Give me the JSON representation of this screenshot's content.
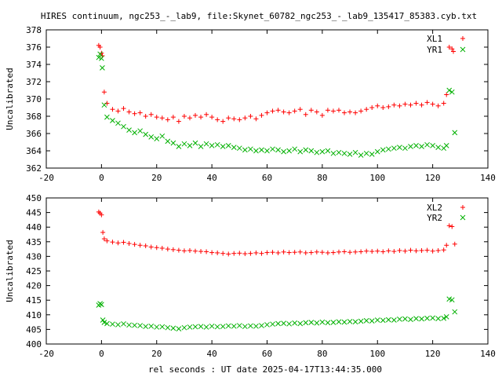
{
  "title": "HIRES continuum, ngc253_-_lab9, file:Skynet_60782_ngc253_-_lab9_135417_85383.cyb.txt",
  "xlabel": "rel seconds : UT date 2025-04-17T13:44:35.000",
  "colors": {
    "red": "#ff0000",
    "green": "#00b000",
    "frame": "#000000"
  },
  "chart_data": [
    {
      "type": "scatter",
      "ylabel": "Uncalibrated",
      "xlim": [
        -20,
        140
      ],
      "ylim": [
        362,
        378
      ],
      "xticks": [
        -20,
        0,
        20,
        40,
        60,
        80,
        100,
        120,
        140
      ],
      "yticks": [
        362,
        364,
        366,
        368,
        370,
        372,
        374,
        376,
        378
      ],
      "legend": "top-right",
      "grid": false,
      "series": [
        {
          "name": "XL1",
          "color": "#ff0000",
          "marker": "+",
          "x": [
            -1,
            -0.5,
            0,
            0.3,
            1,
            2,
            4,
            6,
            8,
            10,
            12,
            14,
            16,
            18,
            20,
            22,
            24,
            26,
            28,
            30,
            32,
            34,
            36,
            38,
            40,
            42,
            44,
            46,
            48,
            50,
            52,
            54,
            56,
            58,
            60,
            62,
            64,
            66,
            68,
            70,
            72,
            74,
            76,
            78,
            80,
            82,
            84,
            86,
            88,
            90,
            92,
            94,
            96,
            98,
            100,
            102,
            104,
            106,
            108,
            110,
            112,
            114,
            116,
            118,
            120,
            122,
            124,
            125,
            126,
            127,
            127.5
          ],
          "y": [
            376.2,
            376.0,
            375.3,
            375.0,
            370.8,
            369.5,
            368.8,
            368.6,
            368.9,
            368.5,
            368.3,
            368.4,
            368.0,
            368.2,
            367.9,
            367.8,
            367.6,
            367.9,
            367.4,
            368.0,
            367.8,
            368.1,
            367.9,
            368.2,
            367.9,
            367.6,
            367.4,
            367.8,
            367.7,
            367.6,
            367.8,
            368.0,
            367.7,
            368.1,
            368.4,
            368.6,
            368.7,
            368.5,
            368.4,
            368.6,
            368.8,
            368.2,
            368.7,
            368.5,
            368.1,
            368.7,
            368.6,
            368.7,
            368.4,
            368.5,
            368.4,
            368.6,
            368.8,
            369.0,
            369.2,
            369.0,
            369.1,
            369.3,
            369.2,
            369.4,
            369.3,
            369.5,
            369.3,
            369.6,
            369.4,
            369.2,
            369.5,
            370.5,
            376.0,
            375.8,
            375.5
          ]
        },
        {
          "name": "YR1",
          "color": "#00b000",
          "marker": "x",
          "x": [
            -1,
            -0.5,
            0,
            0.3,
            1,
            2,
            4,
            6,
            8,
            10,
            12,
            14,
            16,
            18,
            20,
            22,
            24,
            26,
            28,
            30,
            32,
            34,
            36,
            38,
            40,
            42,
            44,
            46,
            48,
            50,
            52,
            54,
            56,
            58,
            60,
            62,
            64,
            66,
            68,
            70,
            72,
            74,
            76,
            78,
            80,
            82,
            84,
            86,
            88,
            90,
            92,
            94,
            96,
            98,
            100,
            102,
            104,
            106,
            108,
            110,
            112,
            114,
            116,
            118,
            120,
            122,
            124,
            125,
            126,
            127,
            128
          ],
          "y": [
            374.8,
            375.2,
            374.7,
            373.6,
            369.3,
            367.9,
            367.5,
            367.2,
            366.8,
            366.4,
            366.1,
            366.3,
            365.9,
            365.6,
            365.4,
            365.7,
            365.1,
            364.9,
            364.5,
            364.8,
            364.6,
            364.9,
            364.5,
            364.8,
            364.6,
            364.7,
            364.5,
            364.6,
            364.4,
            364.3,
            364.1,
            364.2,
            364.0,
            364.1,
            364.0,
            364.2,
            364.1,
            363.9,
            364.0,
            364.2,
            363.9,
            364.1,
            364.0,
            363.8,
            363.9,
            364.0,
            363.7,
            363.8,
            363.7,
            363.6,
            363.8,
            363.5,
            363.7,
            363.6,
            363.9,
            364.1,
            364.2,
            364.3,
            364.4,
            364.3,
            364.5,
            364.6,
            364.5,
            364.7,
            364.6,
            364.4,
            364.3,
            364.6,
            371.0,
            370.8,
            366.1
          ]
        }
      ]
    },
    {
      "type": "scatter",
      "ylabel": "Uncalibrated",
      "xlim": [
        -20,
        140
      ],
      "ylim": [
        400,
        450
      ],
      "xticks": [
        -20,
        0,
        20,
        40,
        60,
        80,
        100,
        120,
        140
      ],
      "yticks": [
        400,
        405,
        410,
        415,
        420,
        425,
        430,
        435,
        440,
        445,
        450
      ],
      "legend": "top-right",
      "grid": false,
      "series": [
        {
          "name": "XL2",
          "color": "#ff0000",
          "marker": "+",
          "x": [
            -1,
            -0.5,
            0,
            0.5,
            1,
            2,
            4,
            6,
            8,
            10,
            12,
            14,
            16,
            18,
            20,
            22,
            24,
            26,
            28,
            30,
            32,
            34,
            36,
            38,
            40,
            42,
            44,
            46,
            48,
            50,
            52,
            54,
            56,
            58,
            60,
            62,
            64,
            66,
            68,
            70,
            72,
            74,
            76,
            78,
            80,
            82,
            84,
            86,
            88,
            90,
            92,
            94,
            96,
            98,
            100,
            102,
            104,
            106,
            108,
            110,
            112,
            114,
            116,
            118,
            120,
            122,
            124,
            125,
            126,
            127,
            128
          ],
          "y": [
            445.2,
            444.8,
            444.2,
            438.2,
            436.0,
            435.3,
            434.9,
            434.6,
            434.8,
            434.4,
            434.1,
            433.8,
            433.6,
            433.2,
            433.0,
            432.8,
            432.5,
            432.3,
            432.1,
            431.9,
            432.0,
            431.8,
            431.7,
            431.6,
            431.3,
            431.2,
            431.0,
            430.8,
            431.0,
            431.1,
            430.9,
            431.0,
            431.2,
            431.0,
            431.3,
            431.4,
            431.2,
            431.5,
            431.3,
            431.4,
            431.5,
            431.2,
            431.3,
            431.5,
            431.4,
            431.2,
            431.3,
            431.5,
            431.6,
            431.4,
            431.5,
            431.6,
            431.8,
            431.7,
            431.8,
            431.6,
            431.9,
            431.7,
            432.0,
            431.8,
            432.1,
            431.9,
            432.0,
            432.1,
            431.8,
            432.0,
            432.2,
            433.8,
            440.5,
            440.2,
            434.2
          ]
        },
        {
          "name": "YR2",
          "color": "#00b000",
          "marker": "x",
          "x": [
            -1,
            -0.5,
            0,
            0.5,
            1,
            2,
            4,
            6,
            8,
            10,
            12,
            14,
            16,
            18,
            20,
            22,
            24,
            26,
            28,
            30,
            32,
            34,
            36,
            38,
            40,
            42,
            44,
            46,
            48,
            50,
            52,
            54,
            56,
            58,
            60,
            62,
            64,
            66,
            68,
            70,
            72,
            74,
            76,
            78,
            80,
            82,
            84,
            86,
            88,
            90,
            92,
            94,
            96,
            98,
            100,
            102,
            104,
            106,
            108,
            110,
            112,
            114,
            116,
            118,
            120,
            122,
            124,
            125,
            126,
            127,
            128
          ],
          "y": [
            413.3,
            413.8,
            413.5,
            408.2,
            407.4,
            407.0,
            406.8,
            406.6,
            406.9,
            406.5,
            406.4,
            406.3,
            406.0,
            406.1,
            405.8,
            405.9,
            405.6,
            405.4,
            405.2,
            405.6,
            405.8,
            405.9,
            406.0,
            405.8,
            406.1,
            405.9,
            406.0,
            406.2,
            406.1,
            406.3,
            406.0,
            406.2,
            406.1,
            406.3,
            406.6,
            406.8,
            407.0,
            407.1,
            406.9,
            407.2,
            407.0,
            407.3,
            407.4,
            407.2,
            407.5,
            407.3,
            407.4,
            407.6,
            407.5,
            407.7,
            407.6,
            407.8,
            408.0,
            407.9,
            408.2,
            408.1,
            408.3,
            408.2,
            408.5,
            408.6,
            408.4,
            408.7,
            408.6,
            408.8,
            408.9,
            408.7,
            408.8,
            409.3,
            415.4,
            415.1,
            411.0
          ]
        }
      ]
    }
  ]
}
